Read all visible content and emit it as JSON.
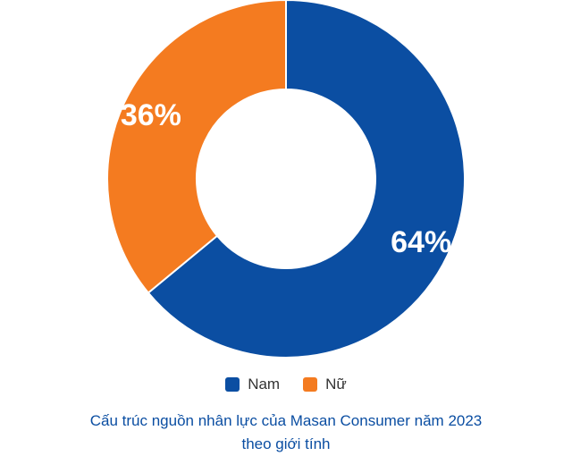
{
  "chart_data": {
    "type": "pie",
    "categories": [
      "Nam",
      "Nữ"
    ],
    "values": [
      64,
      36
    ],
    "value_labels": [
      "64%",
      "36%"
    ],
    "colors": [
      "#0b4ea2",
      "#f47b20"
    ],
    "donut": true,
    "legend_position": "bottom",
    "caption_lines": [
      "Cấu trúc nguồn nhân lực của Masan Consumer năm 2023",
      "theo giới tính"
    ]
  }
}
